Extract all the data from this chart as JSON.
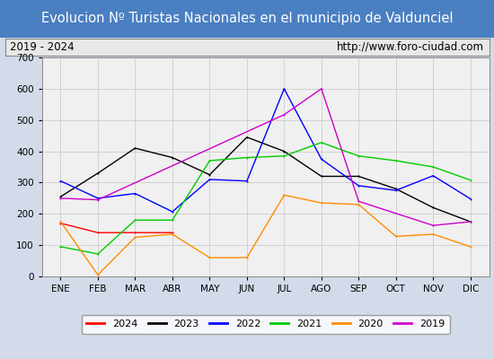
{
  "title": "Evolucion Nº Turistas Nacionales en el municipio de Valdunciel",
  "subtitle_left": "2019 - 2024",
  "subtitle_right": "http://www.foro-ciudad.com",
  "months": [
    "ENE",
    "FEB",
    "MAR",
    "ABR",
    "MAY",
    "JUN",
    "JUL",
    "AGO",
    "SEP",
    "OCT",
    "NOV",
    "DIC"
  ],
  "ylim": [
    0,
    700
  ],
  "yticks": [
    0,
    100,
    200,
    300,
    400,
    500,
    600,
    700
  ],
  "series": {
    "2024": {
      "color": "#ff0000",
      "data": [
        170,
        140,
        140,
        140,
        null,
        null,
        null,
        null,
        null,
        null,
        null,
        null
      ]
    },
    "2023": {
      "color": "#000000",
      "data": [
        255,
        330,
        410,
        380,
        325,
        445,
        400,
        320,
        320,
        280,
        220,
        175
      ]
    },
    "2022": {
      "color": "#0000ff",
      "data": [
        305,
        250,
        265,
        207,
        310,
        305,
        600,
        375,
        290,
        275,
        322,
        248
      ]
    },
    "2021": {
      "color": "#00cc00",
      "data": [
        95,
        72,
        180,
        180,
        370,
        380,
        385,
        428,
        385,
        370,
        350,
        308
      ]
    },
    "2020": {
      "color": "#ff8c00",
      "data": [
        175,
        5,
        125,
        135,
        60,
        60,
        260,
        235,
        230,
        128,
        135,
        95
      ]
    },
    "2019": {
      "color": "#cc00cc",
      "data": [
        250,
        245,
        null,
        null,
        null,
        null,
        517,
        600,
        240,
        null,
        163,
        175
      ]
    }
  },
  "title_bg_color": "#4a7fc1",
  "title_text_color": "white",
  "title_fontsize": 10.5,
  "subtitle_fontsize": 8.5,
  "tick_fontsize": 7.5,
  "legend_order": [
    "2024",
    "2023",
    "2022",
    "2021",
    "2020",
    "2019"
  ],
  "plot_bg_color": "#f0f0f0",
  "outer_bg_color": "#d3daea",
  "grid_color": "#cccccc",
  "subtitle_box_color": "#e8e8e8"
}
